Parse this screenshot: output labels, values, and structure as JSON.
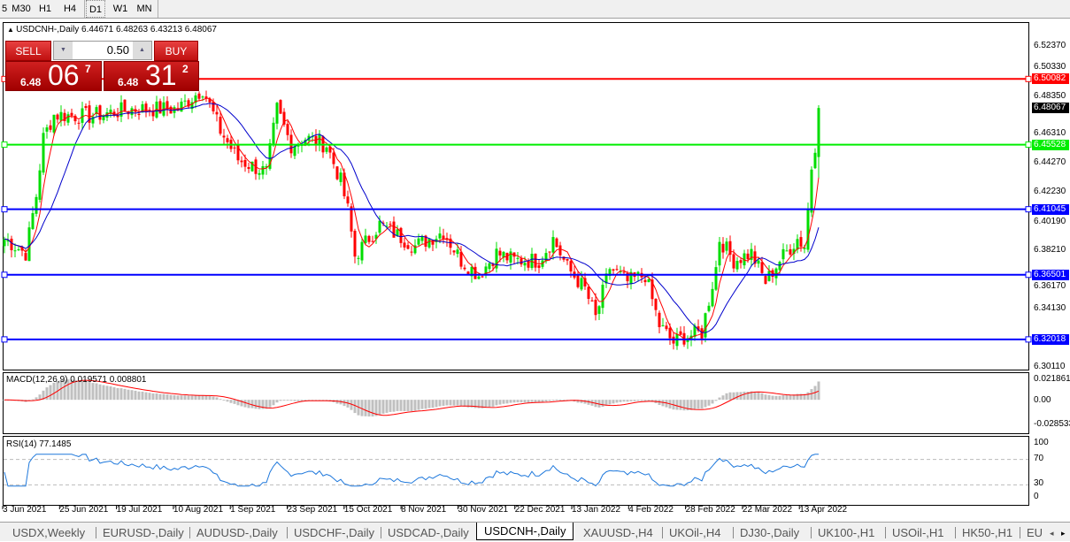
{
  "toolbar": {
    "timeframes": [
      "5",
      "M30",
      "H1",
      "H4",
      "D1",
      "W1",
      "MN"
    ],
    "active": "D1"
  },
  "chart": {
    "title": "USDCNH-,Daily  6.44671 6.48263 6.43213 6.48067",
    "symbol": "USDCNH-",
    "period": "Daily",
    "ohlc": {
      "open": "6.44671",
      "high": "6.48263",
      "low": "6.43213",
      "close": "6.48067"
    },
    "price_axis": [
      "6.52370",
      "6.50330",
      "6.48350",
      "6.46310",
      "6.44270",
      "6.42230",
      "6.40190",
      "6.38210",
      "6.36170",
      "6.34130",
      "6.30110"
    ],
    "price_range": [
      6.3011,
      6.5237
    ],
    "current_price": {
      "label": "6.48067",
      "value": 6.48067,
      "color": "#000000"
    },
    "levels": [
      {
        "label": "6.50082",
        "value": 6.50082,
        "color": "#ff0000"
      },
      {
        "label": "6.45528",
        "value": 6.45528,
        "color": "#00ee00"
      },
      {
        "label": "6.41045",
        "value": 6.41045,
        "color": "#0000ff"
      },
      {
        "label": "6.36501",
        "value": 6.36501,
        "color": "#0000ff"
      },
      {
        "label": "6.32018",
        "value": 6.32018,
        "color": "#0000ff"
      }
    ],
    "candle_colors": {
      "up": "#00dd00",
      "down": "#ff0000"
    },
    "ma_colors": {
      "fast": "#ff0000",
      "slow": "#0000cc"
    },
    "approx_close_path": [
      [
        0,
        6.39
      ],
      [
        6,
        6.38
      ],
      [
        9,
        6.42
      ],
      [
        11,
        6.46
      ],
      [
        14,
        6.476
      ],
      [
        24,
        6.475
      ],
      [
        36,
        6.48
      ],
      [
        49,
        6.48
      ],
      [
        56,
        6.494
      ],
      [
        61,
        6.465
      ],
      [
        66,
        6.445
      ],
      [
        74,
        6.436
      ],
      [
        77,
        6.48
      ],
      [
        81,
        6.455
      ],
      [
        85,
        6.46
      ],
      [
        91,
        6.455
      ],
      [
        95,
        6.43
      ],
      [
        97,
        6.41
      ],
      [
        99,
        6.378
      ],
      [
        106,
        6.4
      ],
      [
        116,
        6.385
      ],
      [
        124,
        6.395
      ],
      [
        129,
        6.375
      ],
      [
        134,
        6.365
      ],
      [
        139,
        6.38
      ],
      [
        144,
        6.375
      ],
      [
        151,
        6.375
      ],
      [
        155,
        6.39
      ],
      [
        159,
        6.37
      ],
      [
        164,
        6.355
      ],
      [
        167,
        6.335
      ],
      [
        171,
        6.37
      ],
      [
        176,
        6.36
      ],
      [
        181,
        6.365
      ],
      [
        185,
        6.33
      ],
      [
        189,
        6.318
      ],
      [
        192,
        6.322
      ],
      [
        197,
        6.325
      ],
      [
        201,
        6.37
      ],
      [
        202,
        6.39
      ],
      [
        206,
        6.375
      ],
      [
        211,
        6.38
      ],
      [
        215,
        6.36
      ],
      [
        219,
        6.375
      ],
      [
        224,
        6.39
      ],
      [
        226,
        6.385
      ],
      [
        227,
        6.41
      ],
      [
        228,
        6.44
      ],
      [
        229,
        6.45528
      ],
      [
        230,
        6.48067
      ]
    ],
    "date_axis": [
      "3 Jun 2021",
      "25 Jun 2021",
      "19 Jul 2021",
      "10 Aug 2021",
      "1 Sep 2021",
      "23 Sep 2021",
      "15 Oct 2021",
      "8 Nov 2021",
      "30 Nov 2021",
      "22 Dec 2021",
      "13 Jan 2022",
      "4 Feb 2022",
      "28 Feb 2022",
      "22 Mar 2022",
      "13 Apr 2022"
    ]
  },
  "trade_panel": {
    "sell_label": "SELL",
    "buy_label": "BUY",
    "volume": "0.50",
    "sell_price": {
      "prefix": "6.48",
      "big": "06",
      "sup": "7"
    },
    "buy_price": {
      "prefix": "6.48",
      "big": "31",
      "sup": "2"
    }
  },
  "macd": {
    "label": "MACD(12,26,9) 0.019571 0.008801",
    "axis": [
      "0.021861",
      "0.00",
      "-0.028533"
    ],
    "hist_color": "#c0c0c0",
    "signal_color": "#ff0000"
  },
  "rsi": {
    "label": "RSI(14) 77.1485",
    "axis": [
      "100",
      "70",
      "30",
      "0"
    ],
    "levels": [
      70,
      30
    ],
    "color": "#1e78dc"
  },
  "tabs": [
    "USDX,Weekly",
    "EURUSD-,Daily",
    "AUDUSD-,Daily",
    "USDCHF-,Daily",
    "USDCAD-,Daily",
    "USDCNH-,Daily",
    "XAUUSD-,H4",
    "UKOil-,H4",
    "DJ30-,Daily",
    "UK100-,H1",
    "USOil-,H1",
    "HK50-,H1",
    "EU"
  ],
  "active_tab": "USDCNH-,Daily"
}
